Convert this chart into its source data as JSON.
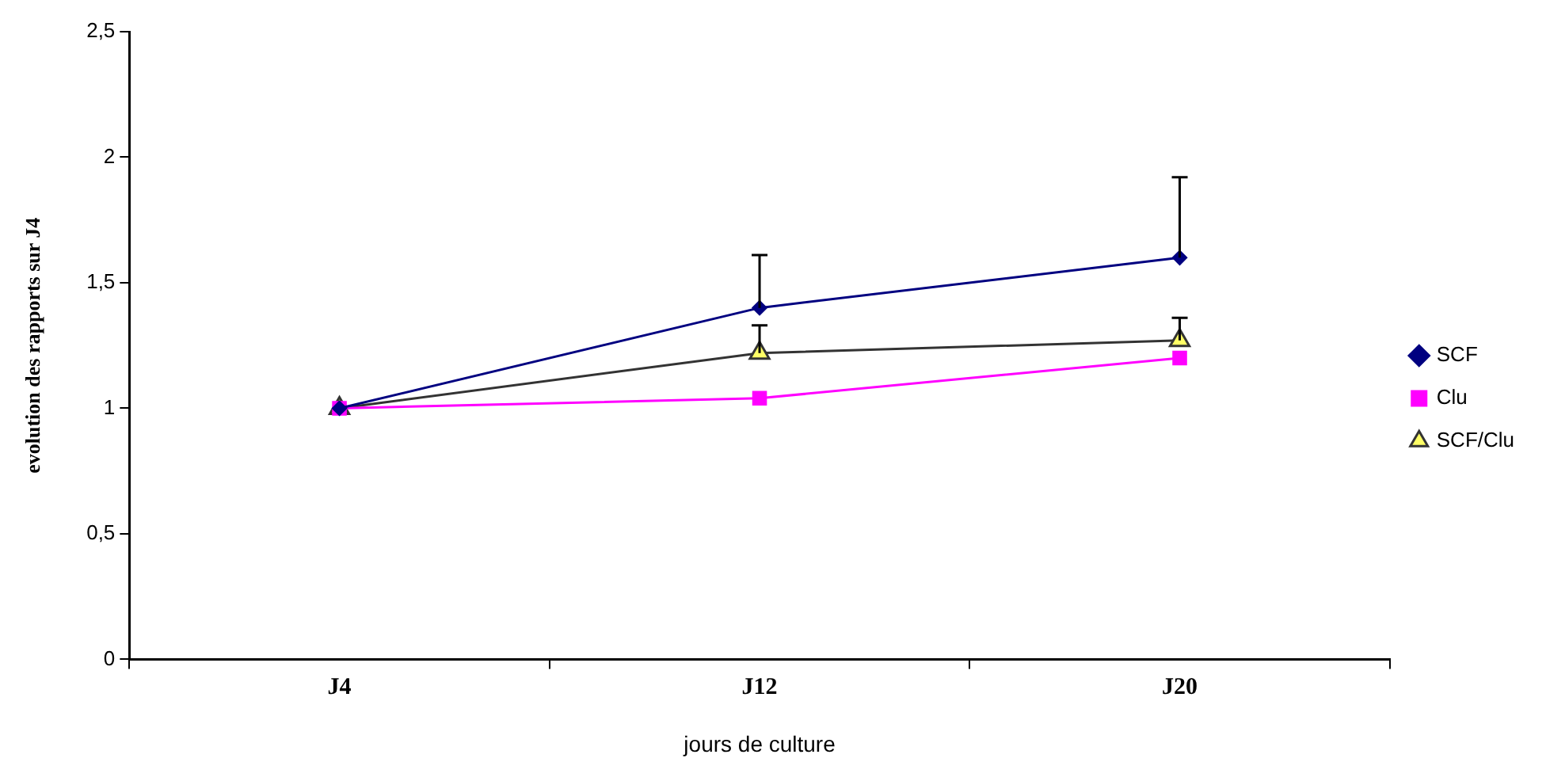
{
  "chart_data": {
    "type": "line",
    "xlabel": "jours de culture",
    "ylabel": "evolution des rapports sur J4",
    "categories": [
      "J4",
      "J12",
      "J20"
    ],
    "series": [
      {
        "name": "SCF",
        "color": "#000080",
        "marker": "diamond",
        "values": [
          1,
          1.4,
          1.6
        ],
        "errors": [
          null,
          [
            1.4,
            1.61
          ],
          [
            1.6,
            1.92
          ]
        ]
      },
      {
        "name": "Clu",
        "color": "#ff00ff",
        "marker": "square",
        "values": [
          1,
          1.04,
          1.2
        ]
      },
      {
        "name": "SCF/Clu",
        "color": "#333333",
        "marker": "triangle",
        "values": [
          1,
          1.22,
          1.27
        ],
        "errors": [
          null,
          [
            1.22,
            1.33
          ],
          [
            1.27,
            1.36
          ]
        ]
      }
    ],
    "ylim": [
      0,
      2.5
    ],
    "yticks": [
      0,
      {
        "value": 0.5,
        "label": "0,5"
      },
      1,
      {
        "value": 1.5,
        "label": "1,5"
      },
      2,
      {
        "value": 2.5,
        "label": "2,5"
      }
    ],
    "grid": false,
    "legend": "right",
    "line_style": "solid"
  }
}
